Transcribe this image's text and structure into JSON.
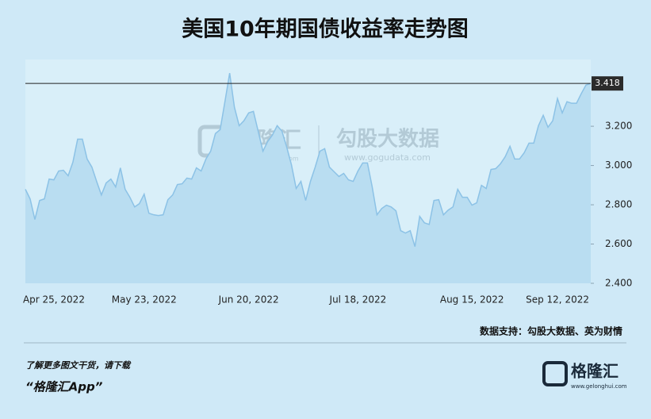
{
  "chart_data": {
    "type": "area",
    "title": "美国10年期国债收益率走势图",
    "categories": [
      null,
      null,
      null,
      null,
      null,
      null,
      "Apr 25, 2022",
      null,
      null,
      null,
      null,
      null,
      null,
      null,
      null,
      null,
      null,
      null,
      null,
      null,
      null,
      null,
      null,
      null,
      null,
      "May 23, 2022",
      null,
      null,
      null,
      null,
      null,
      null,
      null,
      null,
      null,
      null,
      null,
      null,
      null,
      null,
      null,
      null,
      null,
      null,
      null,
      null,
      null,
      "Jun 20, 2022",
      null,
      null,
      null,
      null,
      null,
      null,
      null,
      null,
      null,
      null,
      null,
      null,
      null,
      null,
      null,
      null,
      null,
      null,
      null,
      null,
      null,
      null,
      "Jul 18, 2022",
      null,
      null,
      null,
      null,
      null,
      null,
      null,
      null,
      null,
      null,
      null,
      null,
      null,
      null,
      null,
      null,
      null,
      null,
      null,
      null,
      null,
      null,
      null,
      "Aug 15, 2022",
      null,
      null,
      null,
      null,
      null,
      null,
      null,
      null,
      null,
      null,
      null,
      null,
      null,
      null,
      null,
      null,
      null,
      "Sep 12, 2022",
      null,
      null,
      null,
      null,
      null,
      null,
      null
    ],
    "values": [
      2.879,
      2.83,
      2.725,
      2.822,
      2.83,
      2.931,
      2.927,
      2.972,
      2.976,
      2.948,
      3.017,
      3.134,
      3.134,
      3.033,
      2.992,
      2.919,
      2.85,
      2.911,
      2.931,
      2.891,
      2.988,
      2.879,
      2.838,
      2.789,
      2.806,
      2.854,
      2.757,
      2.749,
      2.745,
      2.749,
      2.826,
      2.85,
      2.903,
      2.907,
      2.936,
      2.931,
      2.988,
      2.972,
      3.033,
      3.073,
      3.163,
      3.183,
      3.325,
      3.471,
      3.297,
      3.203,
      3.228,
      3.268,
      3.276,
      3.175,
      3.073,
      3.122,
      3.155,
      3.203,
      3.175,
      3.094,
      3.004,
      2.883,
      2.919,
      2.822,
      2.919,
      2.992,
      3.073,
      3.086,
      2.992,
      2.968,
      2.944,
      2.96,
      2.927,
      2.919,
      2.972,
      3.013,
      3.013,
      2.891,
      2.749,
      2.781,
      2.798,
      2.789,
      2.769,
      2.668,
      2.656,
      2.668,
      2.587,
      2.741,
      2.708,
      2.7,
      2.822,
      2.826,
      2.749,
      2.773,
      2.789,
      2.879,
      2.838,
      2.838,
      2.798,
      2.81,
      2.899,
      2.883,
      2.98,
      2.984,
      3.009,
      3.045,
      3.098,
      3.033,
      3.033,
      3.065,
      3.114,
      3.114,
      3.203,
      3.256,
      3.195,
      3.228,
      3.341,
      3.268,
      3.325,
      3.317,
      3.317,
      3.366,
      3.41,
      3.418
    ],
    "color": "#8cc2e6",
    "fill": "#b9ddf1",
    "ylim": [
      2.4,
      3.54
    ],
    "yticks": [
      {
        "value": 2.4,
        "label": "2.400"
      },
      {
        "value": 2.6,
        "label": "2.600"
      },
      {
        "value": 2.8,
        "label": "2.800"
      },
      {
        "value": 3.0,
        "label": "3.000"
      },
      {
        "value": 3.2,
        "label": "3.200"
      }
    ],
    "reference_line": 3.418,
    "source": "数据支持：勾股大数据、英为财情",
    "watermark": {
      "brand": "格隆汇",
      "brand_url": "www.gelonghui.com",
      "partner": "勾股大数据",
      "partner_url": "www.gogudata.com"
    }
  },
  "footer": {
    "prompt": "了解更多图文干货，请下载",
    "app": "“格隆汇App”"
  },
  "logo": {
    "name": "格隆汇",
    "url": "www.gelonghui.com"
  }
}
